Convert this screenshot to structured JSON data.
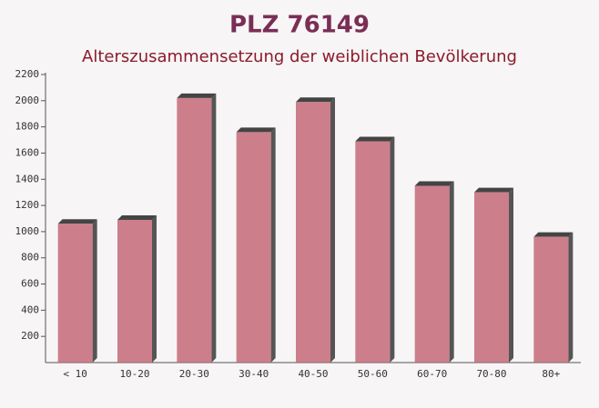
{
  "chart_data": {
    "type": "bar",
    "title": "PLZ 76149",
    "subtitle": "Alterszusammensetzung der weiblichen Bevölkerung",
    "categories": [
      "< 10",
      "10-20",
      "20-30",
      "30-40",
      "40-50",
      "50-60",
      "60-70",
      "70-80",
      "80+"
    ],
    "values": [
      1060,
      1090,
      2020,
      1760,
      1990,
      1690,
      1350,
      1300,
      960
    ],
    "color": "#c46a77",
    "ylim": [
      0,
      2200
    ],
    "yticks": [
      200,
      400,
      600,
      800,
      1000,
      1200,
      1400,
      1600,
      1800,
      2000,
      2200
    ]
  }
}
